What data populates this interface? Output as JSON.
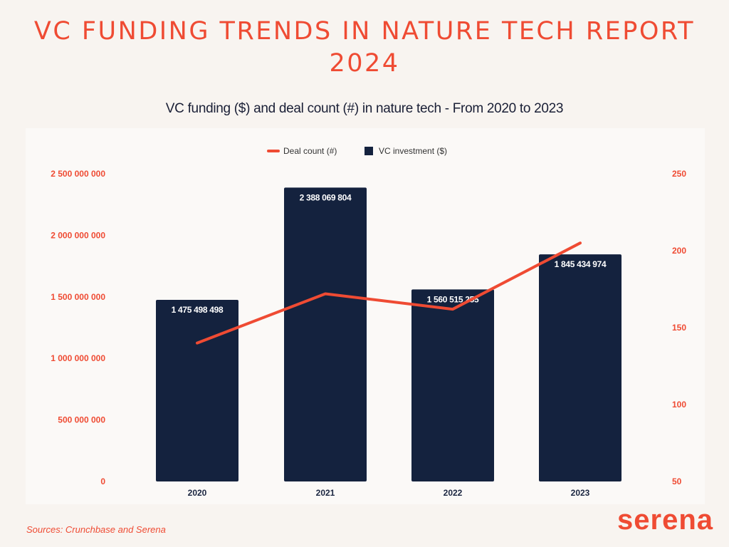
{
  "header": {
    "title": "VC FUNDING TRENDS IN NATURE TECH REPORT 2024",
    "subtitle": "VC funding ($) and deal count (#) in nature tech - From 2020 to 2023"
  },
  "footer": {
    "sources": "Sources: Crunchbase and Serena",
    "logo": "serena"
  },
  "colors": {
    "accent": "#ef4b33",
    "bar": "#14223e",
    "background": "#f8f4f0"
  },
  "chart_data": {
    "type": "bar+line",
    "categories": [
      "2020",
      "2021",
      "2022",
      "2023"
    ],
    "series": [
      {
        "name": "VC investment ($)",
        "type": "bar",
        "axis": "left",
        "values": [
          1475498498,
          2388069804,
          1560515255,
          1845434974
        ],
        "labels": [
          "1 475 498 498",
          "2 388 069 804",
          "1 560 515 255",
          "1 845 434 974"
        ]
      },
      {
        "name": "Deal count (#)",
        "type": "line",
        "axis": "right",
        "values": [
          140,
          172,
          162,
          205
        ]
      }
    ],
    "left_axis": {
      "ylim": [
        0,
        2500000000
      ],
      "ticks": [
        "0",
        "500 000 000",
        "1 000 000 000",
        "1 500 000 000",
        "2 000 000 000",
        "2 500 000 000"
      ]
    },
    "right_axis": {
      "ylim": [
        50,
        250
      ],
      "ticks": [
        "50",
        "100",
        "150",
        "200",
        "250"
      ]
    },
    "legend": {
      "position": "top-center",
      "entries": [
        "Deal count (#)",
        "VC investment ($)"
      ]
    },
    "grid": false
  }
}
